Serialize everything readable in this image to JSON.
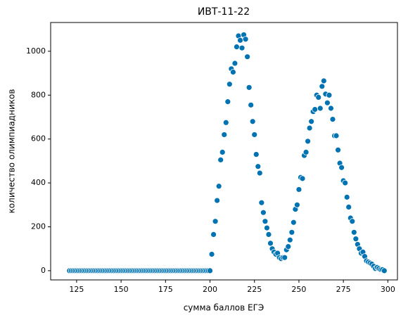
{
  "chart_data": {
    "type": "scatter",
    "title": "ИВТ-11-22",
    "x_label": "сумма баллов ЕГЭ",
    "y_label": "количество олимпиадников",
    "color": "#0173b2",
    "xlim": [
      110.4,
      305.4
    ],
    "ylim": [
      -42,
      1131
    ],
    "xticks": [
      125,
      150,
      175,
      200,
      225,
      250,
      275,
      300
    ],
    "yticks": [
      0,
      200,
      400,
      600,
      800,
      1000
    ],
    "x": [
      121,
      122,
      123,
      124,
      125,
      126,
      127,
      128,
      129,
      130,
      131,
      132,
      133,
      134,
      135,
      136,
      137,
      138,
      139,
      140,
      141,
      142,
      143,
      144,
      145,
      146,
      147,
      148,
      149,
      150,
      151,
      152,
      153,
      154,
      155,
      156,
      157,
      158,
      159,
      160,
      161,
      162,
      163,
      164,
      165,
      166,
      167,
      168,
      169,
      170,
      171,
      172,
      173,
      174,
      175,
      176,
      177,
      178,
      179,
      180,
      181,
      182,
      183,
      184,
      185,
      186,
      187,
      188,
      189,
      190,
      191,
      192,
      193,
      194,
      195,
      196,
      197,
      198,
      199,
      200,
      201,
      202,
      203,
      204,
      205,
      206,
      207,
      208,
      209,
      210,
      211,
      212,
      213,
      214,
      215,
      216,
      217,
      218,
      219,
      220,
      221,
      222,
      223,
      224,
      225,
      226,
      227,
      228,
      229,
      230,
      231,
      232,
      233,
      234,
      235,
      236,
      237,
      238,
      239,
      240,
      241,
      242,
      243,
      244,
      245,
      246,
      247,
      248,
      249,
      250,
      251,
      252,
      253,
      254,
      255,
      256,
      257,
      258,
      259,
      260,
      261,
      262,
      263,
      264,
      265,
      266,
      267,
      268,
      269,
      270,
      271,
      272,
      273,
      274,
      275,
      276,
      277,
      278,
      279,
      280,
      281,
      282,
      283,
      284,
      285,
      286,
      287,
      288,
      289,
      290,
      291,
      292,
      293,
      294,
      295,
      296,
      297,
      298
    ],
    "values": [
      0,
      0,
      0,
      0,
      0,
      0,
      0,
      0,
      0,
      0,
      0,
      0,
      0,
      0,
      0,
      0,
      0,
      0,
      0,
      0,
      0,
      0,
      0,
      0,
      0,
      0,
      0,
      0,
      0,
      0,
      0,
      0,
      0,
      0,
      0,
      0,
      0,
      0,
      0,
      0,
      0,
      0,
      0,
      0,
      0,
      0,
      0,
      0,
      0,
      0,
      0,
      0,
      0,
      0,
      0,
      0,
      0,
      0,
      0,
      0,
      0,
      0,
      0,
      0,
      0,
      0,
      0,
      0,
      0,
      0,
      0,
      0,
      0,
      0,
      0,
      0,
      0,
      0,
      0,
      0,
      75,
      165,
      225,
      320,
      385,
      505,
      540,
      620,
      675,
      770,
      850,
      920,
      905,
      945,
      1020,
      1070,
      1050,
      1015,
      1075,
      1055,
      975,
      835,
      755,
      680,
      620,
      530,
      475,
      445,
      310,
      265,
      225,
      195,
      165,
      125,
      100,
      85,
      75,
      80,
      60,
      55,
      60,
      60,
      95,
      110,
      140,
      175,
      220,
      280,
      300,
      370,
      425,
      420,
      525,
      540,
      590,
      650,
      680,
      725,
      735,
      800,
      790,
      740,
      840,
      865,
      805,
      765,
      800,
      740,
      690,
      615,
      615,
      550,
      490,
      470,
      410,
      400,
      335,
      290,
      240,
      225,
      175,
      145,
      120,
      100,
      80,
      85,
      65,
      45,
      40,
      35,
      30,
      20,
      10,
      15,
      10,
      5,
      5,
      0
    ]
  }
}
